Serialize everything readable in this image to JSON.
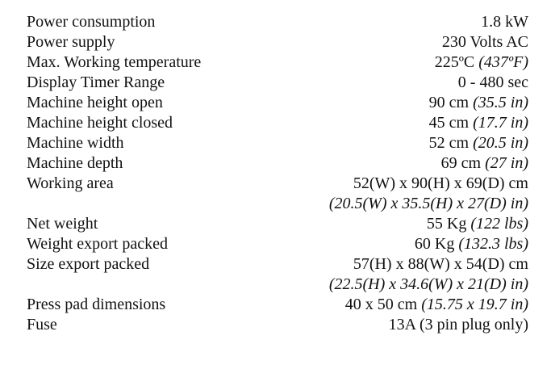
{
  "table": {
    "rows": [
      {
        "label": "Power consumption",
        "value": "1.8 kW"
      },
      {
        "label": "Power supply",
        "value": "230 Volts AC"
      },
      {
        "label": "Max. Working temperature",
        "value": "225ºC",
        "note": "(437ºF)"
      },
      {
        "label": "Display Timer Range",
        "value": "0 - 480 sec"
      },
      {
        "label": "Machine height open",
        "value": "90 cm",
        "note": "(35.5 in)"
      },
      {
        "label": "Machine height closed",
        "value": "45 cm",
        "note": "(17.7 in)"
      },
      {
        "label": "Machine width",
        "value": "52 cm",
        "note": "(20.5 in)"
      },
      {
        "label": "Machine depth",
        "value": "69 cm",
        "note": "(27 in)"
      },
      {
        "label": "Working area",
        "value": "52(W) x 90(H) x 69(D) cm",
        "note_line": "(20.5(W) x 35.5(H) x 27(D) in)"
      },
      {
        "label": "Net weight",
        "value": "55 Kg",
        "note": "(122 lbs)"
      },
      {
        "label": "Weight export packed",
        "value": "60 Kg",
        "note": "(132.3 lbs)"
      },
      {
        "label": "Size export packed",
        "value": "57(H) x 88(W) x 54(D) cm",
        "note_line": "(22.5(H) x 34.6(W) x 21(D) in)"
      },
      {
        "label": "Press pad dimensions",
        "value": "40 x 50 cm",
        "note": "(15.75 x 19.7 in)"
      },
      {
        "label": "Fuse",
        "value": "13A (3 pin plug only)"
      }
    ]
  }
}
